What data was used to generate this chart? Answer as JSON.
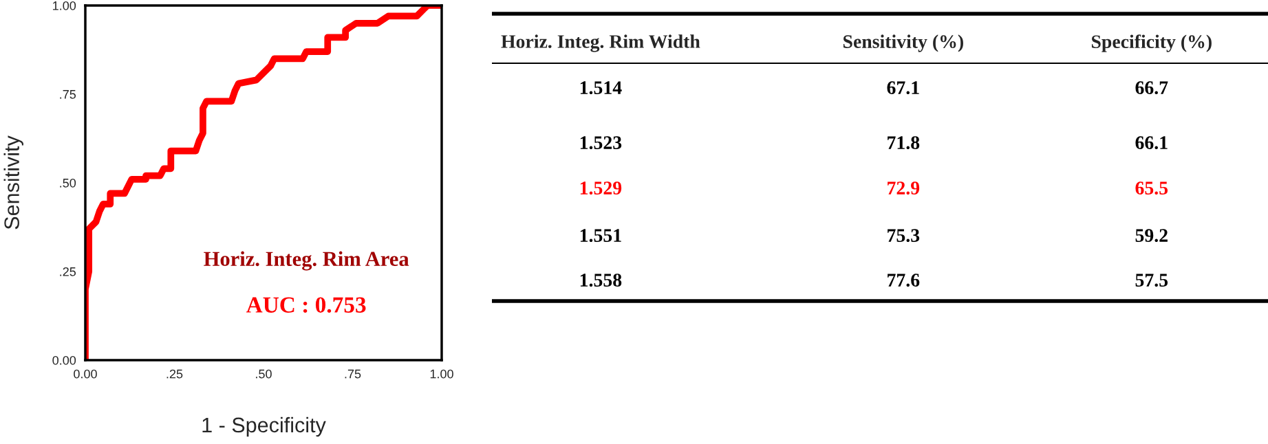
{
  "chart_data": [
    {
      "type": "line",
      "xlabel": "1 - Specificity",
      "ylabel": "Sensitivity",
      "x": [
        0,
        0,
        0.01,
        0.01,
        0.03,
        0.04,
        0.05,
        0.07,
        0.07,
        0.11,
        0.13,
        0.17,
        0.17,
        0.21,
        0.22,
        0.24,
        0.24,
        0.31,
        0.32,
        0.33,
        0.33,
        0.34,
        0.41,
        0.42,
        0.43,
        0.48,
        0.5,
        0.52,
        0.53,
        0.61,
        0.62,
        0.68,
        0.68,
        0.73,
        0.73,
        0.76,
        0.82,
        0.85,
        0.87,
        0.93,
        0.95,
        0.96,
        1.0
      ],
      "series": [
        {
          "color": "#ff0000",
          "values": [
            0,
            0.2,
            0.25,
            0.37,
            0.39,
            0.42,
            0.44,
            0.44,
            0.47,
            0.47,
            0.51,
            0.51,
            0.52,
            0.52,
            0.54,
            0.54,
            0.59,
            0.59,
            0.62,
            0.64,
            0.71,
            0.73,
            0.73,
            0.76,
            0.78,
            0.79,
            0.81,
            0.83,
            0.85,
            0.85,
            0.87,
            0.87,
            0.91,
            0.91,
            0.93,
            0.95,
            0.95,
            0.97,
            0.97,
            0.97,
            0.99,
            1.0,
            1.0
          ]
        }
      ],
      "xlim": [
        0,
        1
      ],
      "ylim": [
        0,
        1
      ],
      "xticks": [
        {
          "value": 0,
          "label": "0.00"
        },
        {
          "value": 0.25,
          "label": ".25"
        },
        {
          "value": 0.5,
          "label": ".50"
        },
        {
          "value": 0.75,
          "label": ".75"
        },
        {
          "value": 1,
          "label": "1.00"
        }
      ],
      "yticks": [
        {
          "value": 0,
          "label": "0.00"
        },
        {
          "value": 0.25,
          "label": ".25"
        },
        {
          "value": 0.5,
          "label": ".50"
        },
        {
          "value": 0.75,
          "label": ".75"
        },
        {
          "value": 1,
          "label": "1.00"
        }
      ],
      "annotations": [
        "Horiz. Integ. Rim Area",
        "AUC : 0.753"
      ],
      "grid": false,
      "marker": "none",
      "line_style": "solid"
    },
    {
      "type": "other",
      "categories": [
        "Horiz. Integ. Rim Width",
        "Sensitivity (%)",
        "Specificity (%)"
      ],
      "cell_labels": [
        [
          "1.514",
          "67.1",
          "66.7"
        ],
        [
          "1.523",
          "71.8",
          "66.1"
        ],
        [
          "1.529",
          "72.9",
          "65.5"
        ],
        [
          "1.551",
          "75.3",
          "59.2"
        ],
        [
          "1.558",
          "77.6",
          "57.5"
        ]
      ],
      "colors": [
        "#000000",
        "#000000",
        "#ff0000",
        "#000000",
        "#000000"
      ]
    }
  ]
}
